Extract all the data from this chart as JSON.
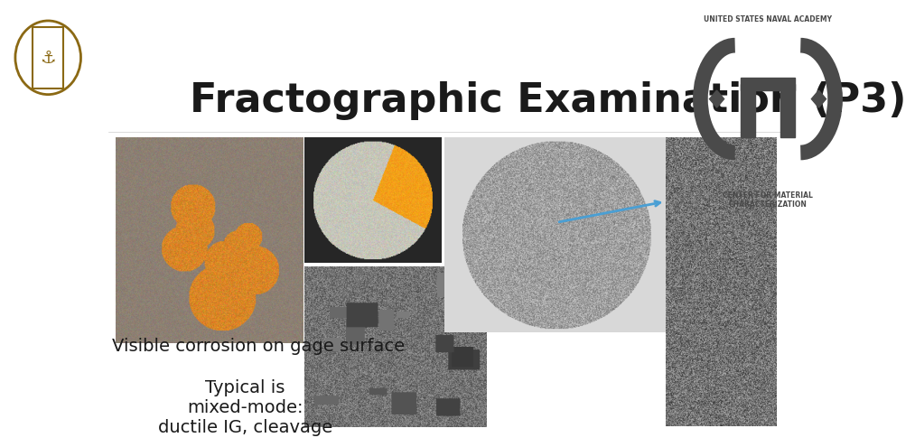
{
  "title": "Fractographic Examination (P3)",
  "title_fontsize": 32,
  "title_color": "#1a1a1a",
  "background_color": "#ffffff",
  "label_visible_corrosion": "Visible corrosion on gage surface",
  "label_typical": "Typical is\nmixed-mode:\nductile IG, cleavage",
  "label_fontsize": 14,
  "label_color": "#1a1a1a",
  "arrow_color": "#4a9fd4",
  "logo_text_top": "UNITED STATES NAVAL ACADEMY",
  "logo_text_bottom": "CENTER FOR MATERIAL\nCHARACTERIZATION",
  "logo_text_fontsize": 5.5,
  "logo_color": "#4a4a4a"
}
